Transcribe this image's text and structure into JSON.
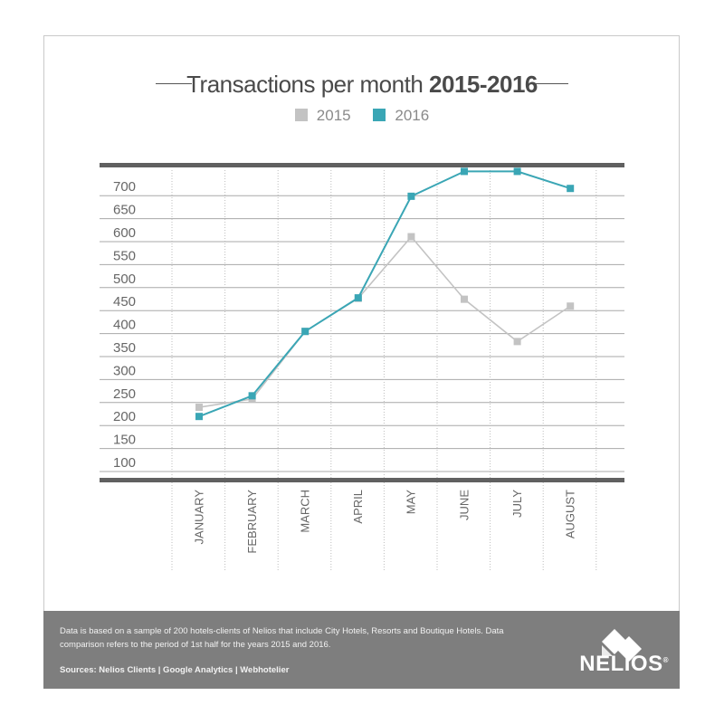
{
  "title": {
    "prefix": "Transactions per month",
    "bold": "2015-2016"
  },
  "legend": [
    {
      "label": "2015",
      "color": "#c3c3c3"
    },
    {
      "label": "2016",
      "color": "#3aa6b5"
    }
  ],
  "chart_data": {
    "type": "line",
    "title": "Transactions per month 2015-2016",
    "xlabel": "",
    "ylabel": "",
    "categories": [
      "JANUARY",
      "FEBRUARY",
      "MARCH",
      "APRIL",
      "MAY",
      "JUNE",
      "JULY",
      "AUGUST"
    ],
    "yticks": [
      100,
      150,
      200,
      250,
      300,
      350,
      400,
      450,
      500,
      550,
      600,
      650,
      700
    ],
    "ylim": [
      80,
      740
    ],
    "grid": true,
    "legend_position": "top-center",
    "series": [
      {
        "name": "2015",
        "color": "#c3c3c3",
        "values": [
          222,
          240,
          387,
          459,
          593,
          457,
          365,
          442
        ]
      },
      {
        "name": "2016",
        "color": "#3aa6b5",
        "values": [
          202,
          247,
          387,
          460,
          681,
          735,
          735,
          698
        ]
      }
    ]
  },
  "footer": {
    "note": "Data is based on a sample of 200 hotels-clients of Nelios that include City Hotels, Resorts and Boutique Hotels. Data comparison refers to the period of 1st half for the years 2015 and 2016.",
    "sources": "Sources: Nelios Clients | Google Analytics | Webhotelier",
    "logo_text": "NELIOS",
    "logo_mark": "®"
  }
}
